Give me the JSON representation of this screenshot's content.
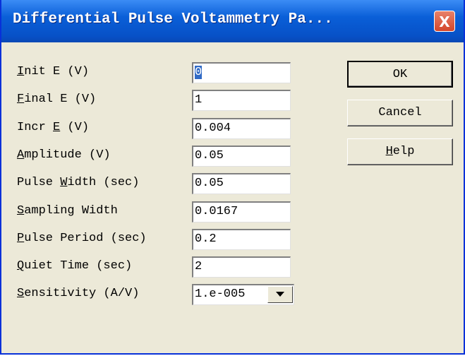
{
  "window": {
    "title": "Differential Pulse Voltammetry Pa...",
    "close": "X"
  },
  "fields": [
    {
      "label": "Init E (V)",
      "mnemonic": 0,
      "value": "0"
    },
    {
      "label": "Final E (V)",
      "mnemonic": 0,
      "value": "1"
    },
    {
      "label": "Incr E (V)",
      "mnemonic": 5,
      "value": "0.004"
    },
    {
      "label": "Amplitude (V)",
      "mnemonic": 0,
      "value": "0.05"
    },
    {
      "label": "Pulse Width (sec)",
      "mnemonic": 6,
      "value": "0.05"
    },
    {
      "label": "Sampling Width",
      "mnemonic": 0,
      "value": "0.0167"
    },
    {
      "label": "Pulse Period (sec)",
      "mnemonic": 0,
      "value": "0.2"
    },
    {
      "label": "Quiet Time (sec)",
      "mnemonic": 0,
      "value": "2"
    },
    {
      "label": "Sensitivity (A/V)",
      "mnemonic": 0,
      "value": "1.e-005"
    }
  ],
  "buttons": [
    {
      "label": "OK"
    },
    {
      "label": "Cancel"
    },
    {
      "label": "Help",
      "mnemonic": 0
    }
  ]
}
